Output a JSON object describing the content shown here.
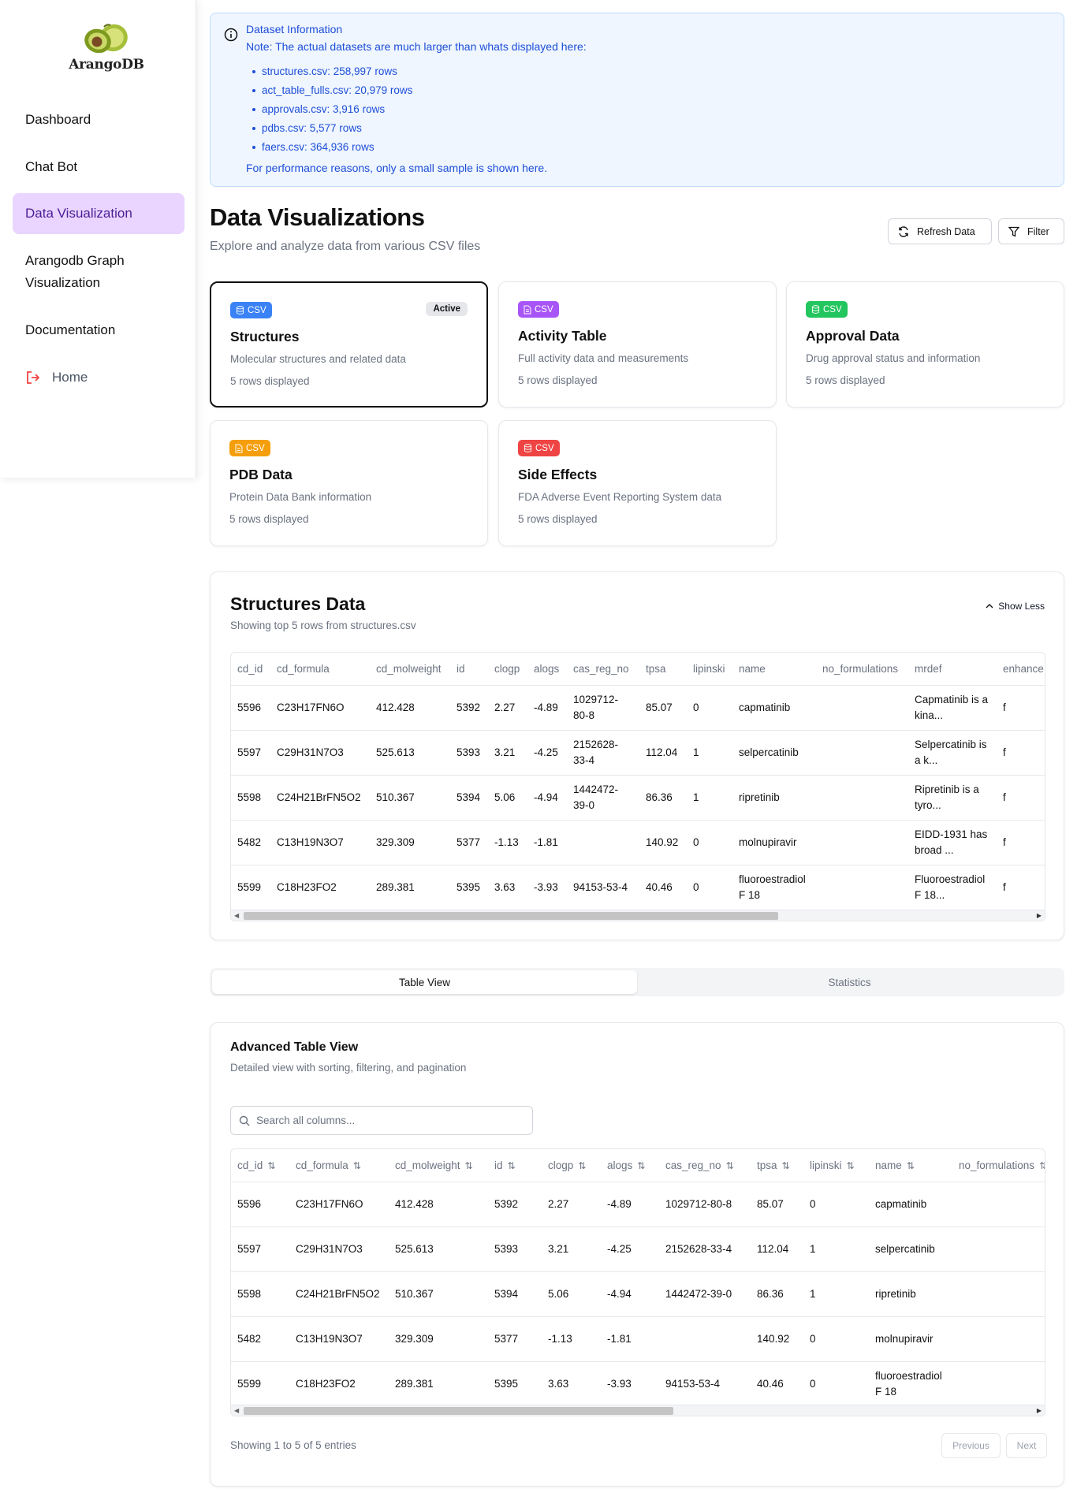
{
  "sidebar": {
    "logo_text": "ArangoDB",
    "items": [
      {
        "label": "Dashboard"
      },
      {
        "label": "Chat Bot"
      },
      {
        "label": "Data Visualization"
      },
      {
        "label": "Arangodb Graph Visualization"
      },
      {
        "label": "Documentation"
      },
      {
        "label": "Home"
      }
    ]
  },
  "info": {
    "title": "Dataset Information",
    "note": "Note: The actual datasets are much larger than whats displayed here:",
    "files": [
      "structures.csv: 258,997 rows",
      "act_table_fulls.csv: 20,979 rows",
      "approvals.csv: 3,916 rows",
      "pdbs.csv: 5,577 rows",
      "faers.csv: 364,936 rows"
    ],
    "perf": "For performance reasons, only a small sample is shown here."
  },
  "header": {
    "title": "Data Visualizations",
    "subtitle": "Explore and analyze data from various CSV files",
    "refresh_label": "Refresh Data",
    "filter_label": "Filter"
  },
  "cards": [
    {
      "badge": "CSV",
      "title": "Structures",
      "desc": "Molecular structures and related data",
      "rows": "5 rows displayed",
      "active_label": "Active",
      "color": "#3b82f6"
    },
    {
      "badge": "CSV",
      "title": "Activity Table",
      "desc": "Full activity data and measurements",
      "rows": "5 rows displayed",
      "color": "#a855f7"
    },
    {
      "badge": "CSV",
      "title": "Approval Data",
      "desc": "Drug approval status and information",
      "rows": "5 rows displayed",
      "color": "#22c55e"
    },
    {
      "badge": "CSV",
      "title": "PDB Data",
      "desc": "Protein Data Bank information",
      "rows": "5 rows displayed",
      "color": "#f59e0b"
    },
    {
      "badge": "CSV",
      "title": "Side Effects",
      "desc": "FDA Adverse Event Reporting System data",
      "rows": "5 rows displayed",
      "color": "#ef4444"
    }
  ],
  "structures": {
    "title": "Structures Data",
    "subtitle": "Showing top 5 rows from structures.csv",
    "show_less": "Show Less",
    "columns": [
      "cd_id",
      "cd_formula",
      "cd_molweight",
      "id",
      "clogp",
      "alogs",
      "cas_reg_no",
      "tpsa",
      "lipinski",
      "name",
      "no_formulations",
      "mrdef",
      "enhance"
    ],
    "rows": [
      [
        "5596",
        "C23H17FN6O",
        "412.428",
        "5392",
        "2.27",
        "-4.89",
        "1029712-80-8",
        "85.07",
        "0",
        "capmatinib",
        "",
        "Capmatinib is a kina...",
        "f"
      ],
      [
        "5597",
        "C29H31N7O3",
        "525.613",
        "5393",
        "3.21",
        "-4.25",
        "2152628-33-4",
        "112.04",
        "1",
        "selpercatinib",
        "",
        "Selpercatinib is a k...",
        "f"
      ],
      [
        "5598",
        "C24H21BrFN5O2",
        "510.367",
        "5394",
        "5.06",
        "-4.94",
        "1442472-39-0",
        "86.36",
        "1",
        "ripretinib",
        "",
        "Ripretinib is a tyro...",
        "f"
      ],
      [
        "5482",
        "C13H19N3O7",
        "329.309",
        "5377",
        "-1.13",
        "-1.81",
        "",
        "140.92",
        "0",
        "molnupiravir",
        "",
        "EIDD-1931 has broad ...",
        "f"
      ],
      [
        "5599",
        "C18H23FO2",
        "289.381",
        "5395",
        "3.63",
        "-3.93",
        "94153-53-4",
        "40.46",
        "0",
        "fluoroestradiol F 18",
        "",
        "Fluoroestradiol F 18...",
        "f"
      ]
    ]
  },
  "tabs": [
    {
      "label": "Table View"
    },
    {
      "label": "Statistics"
    }
  ],
  "advanced": {
    "title": "Advanced Table View",
    "subtitle": "Detailed view with sorting, filtering, and pagination",
    "search_placeholder": "Search all columns...",
    "columns": [
      "cd_id",
      "cd_formula",
      "cd_molweight",
      "id",
      "clogp",
      "alogs",
      "cas_reg_no",
      "tpsa",
      "lipinski",
      "name",
      "no_formulations"
    ],
    "rows": [
      [
        "5596",
        "C23H17FN6O",
        "412.428",
        "5392",
        "2.27",
        "-4.89",
        "1029712-80-8",
        "85.07",
        "0",
        "capmatinib",
        ""
      ],
      [
        "5597",
        "C29H31N7O3",
        "525.613",
        "5393",
        "3.21",
        "-4.25",
        "2152628-33-4",
        "112.04",
        "1",
        "selpercatinib",
        ""
      ],
      [
        "5598",
        "C24H21BrFN5O2",
        "510.367",
        "5394",
        "5.06",
        "-4.94",
        "1442472-39-0",
        "86.36",
        "1",
        "ripretinib",
        ""
      ],
      [
        "5482",
        "C13H19N3O7",
        "329.309",
        "5377",
        "-1.13",
        "-1.81",
        "",
        "140.92",
        "0",
        "molnupiravir",
        ""
      ],
      [
        "5599",
        "C18H23FO2",
        "289.381",
        "5395",
        "3.63",
        "-3.93",
        "94153-53-4",
        "40.46",
        "0",
        "fluoroestradiol F 18",
        ""
      ]
    ],
    "entries": "Showing 1 to 5 of 5 entries",
    "previous": "Previous",
    "next": "Next"
  }
}
